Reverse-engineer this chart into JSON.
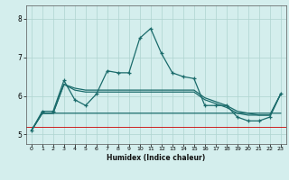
{
  "xlabel": "Humidex (Indice chaleur)",
  "bg_color": "#d4eeed",
  "grid_color": "#aed4d0",
  "line_color": "#1a6b6b",
  "xlim": [
    -0.5,
    23.5
  ],
  "ylim": [
    4.75,
    8.35
  ],
  "yticks": [
    5,
    6,
    7,
    8
  ],
  "xticks": [
    0,
    1,
    2,
    3,
    4,
    5,
    6,
    7,
    8,
    9,
    10,
    11,
    12,
    13,
    14,
    15,
    16,
    17,
    18,
    19,
    20,
    21,
    22,
    23
  ],
  "s1_x": [
    0,
    1,
    2,
    3,
    4,
    5,
    6,
    7,
    8,
    9,
    10,
    11,
    12,
    13,
    14,
    15,
    16,
    17,
    18,
    19,
    20,
    21,
    22,
    23
  ],
  "s1_y": [
    5.1,
    5.6,
    5.6,
    6.4,
    5.9,
    5.75,
    6.05,
    6.65,
    6.6,
    6.6,
    7.5,
    7.75,
    7.1,
    6.6,
    6.5,
    6.45,
    5.75,
    5.75,
    5.75,
    5.45,
    5.35,
    5.35,
    5.45,
    6.05
  ],
  "s2_x": [
    0,
    1,
    2,
    3,
    4,
    5,
    6,
    7,
    8,
    9,
    10,
    11,
    12,
    13,
    14,
    15,
    16,
    17,
    18,
    19,
    20,
    21,
    22,
    23
  ],
  "s2_y": [
    5.1,
    5.55,
    5.55,
    6.3,
    6.15,
    6.1,
    6.1,
    6.1,
    6.1,
    6.1,
    6.1,
    6.1,
    6.1,
    6.1,
    6.1,
    6.1,
    5.9,
    5.8,
    5.7,
    5.55,
    5.5,
    5.5,
    5.5,
    6.05
  ],
  "s3_x": [
    0,
    1,
    2,
    3,
    4,
    5,
    6,
    7,
    8,
    9,
    10,
    11,
    12,
    13,
    14,
    15,
    16,
    17,
    18,
    19,
    20,
    21,
    22,
    23
  ],
  "s3_y": [
    5.1,
    5.55,
    5.55,
    6.3,
    6.2,
    6.15,
    6.15,
    6.15,
    6.15,
    6.15,
    6.15,
    6.15,
    6.15,
    6.15,
    6.15,
    6.15,
    5.95,
    5.85,
    5.75,
    5.6,
    5.55,
    5.5,
    5.5,
    6.05
  ],
  "s4_x": [
    0,
    1,
    2,
    3,
    4,
    5,
    6,
    7,
    8,
    9,
    10,
    11,
    12,
    13,
    14,
    15,
    16,
    17,
    18,
    19,
    20,
    21,
    22,
    23
  ],
  "s4_y": [
    5.1,
    5.55,
    5.55,
    5.55,
    5.55,
    5.55,
    5.55,
    5.55,
    5.55,
    5.55,
    5.55,
    5.55,
    5.55,
    5.55,
    5.55,
    5.55,
    5.55,
    5.55,
    5.55,
    5.55,
    5.55,
    5.55,
    5.55,
    5.55
  ]
}
